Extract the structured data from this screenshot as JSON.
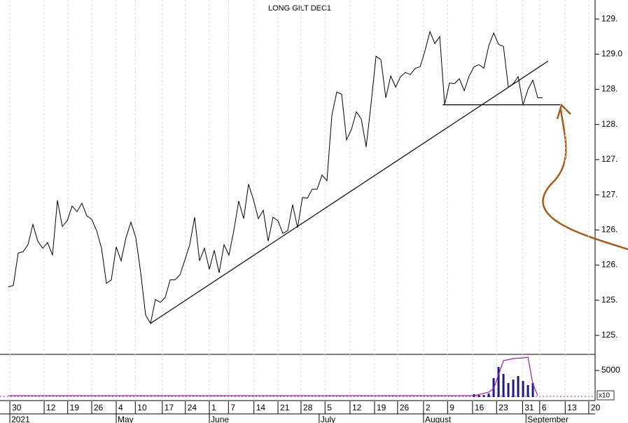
{
  "chart_data": [
    {
      "type": "line",
      "title": "LONG GILT DEC1",
      "series": [
        {
          "color": "#000000",
          "values": [
            125.69,
            125.71,
            126.17,
            126.19,
            126.29,
            126.58,
            126.34,
            126.24,
            126.32,
            126.14,
            126.92,
            126.55,
            126.63,
            126.84,
            126.76,
            126.88,
            126.7,
            126.65,
            126.49,
            126.24,
            125.74,
            125.79,
            126.26,
            126.06,
            126.39,
            126.61,
            126.39,
            125.89,
            125.29,
            125.17,
            125.51,
            125.47,
            125.54,
            125.79,
            125.79,
            125.86,
            126.07,
            126.29,
            126.68,
            126.06,
            126.24,
            125.94,
            126.21,
            125.89,
            126.29,
            126.14,
            126.49,
            126.91,
            126.66,
            127.15,
            126.93,
            126.66,
            126.78,
            126.34,
            126.68,
            126.63,
            126.45,
            126.49,
            126.86,
            126.53,
            126.96,
            126.95,
            127.08,
            127.08,
            127.28,
            127.2,
            128.13,
            128.46,
            128.43,
            127.78,
            127.93,
            128.18,
            128.08,
            127.68,
            128.3,
            128.97,
            128.92,
            128.38,
            128.69,
            128.53,
            128.68,
            128.74,
            128.71,
            128.8,
            128.82,
            129.05,
            129.32,
            129.15,
            129.25,
            128.28,
            128.59,
            128.58,
            128.65,
            128.48,
            128.69,
            128.82,
            128.85,
            128.8,
            129.12,
            129.3,
            129.14,
            129.11,
            128.53,
            128.58,
            128.68,
            128.28,
            128.5,
            128.63,
            128.38,
            128.38
          ]
        }
      ],
      "trendlines": [
        {
          "color": "#000000",
          "x": [
            29,
            110.1
          ],
          "values": [
            125.17,
            128.9
          ]
        },
        {
          "color": "#000000",
          "x": [
            88.6,
            112.6
          ],
          "values": [
            128.28,
            128.28
          ]
        }
      ],
      "xlim": [
        -1.71,
        119.7
      ],
      "ylim": [
        124.74,
        129.77
      ],
      "yticks": [
        {
          "value": 129.5,
          "label": "129."
        },
        {
          "value": 129.0,
          "label": "129.0"
        },
        {
          "value": 128.5,
          "label": "128."
        },
        {
          "value": 128.0,
          "label": "128."
        },
        {
          "value": 127.5,
          "label": "127."
        },
        {
          "value": 127.0,
          "label": "127."
        },
        {
          "value": 126.5,
          "label": "126."
        },
        {
          "value": 126.0,
          "label": "126."
        },
        {
          "value": 125.5,
          "label": "125."
        },
        {
          "value": 125.0,
          "label": "125."
        }
      ],
      "xticks": [
        {
          "value": 0.3,
          "label": "30"
        },
        {
          "value": 7.3,
          "label": "12"
        },
        {
          "value": 12.1,
          "label": "19"
        },
        {
          "value": 17,
          "label": "26"
        },
        {
          "value": 22,
          "label": "4"
        },
        {
          "value": 25.9,
          "label": "10"
        },
        {
          "value": 31.4,
          "label": "17"
        },
        {
          "value": 36.1,
          "label": "24"
        },
        {
          "value": 41,
          "label": "1"
        },
        {
          "value": 44.9,
          "label": "7"
        },
        {
          "value": 50.1,
          "label": "14"
        },
        {
          "value": 55,
          "label": "21"
        },
        {
          "value": 59.7,
          "label": "28"
        },
        {
          "value": 64.6,
          "label": "5"
        },
        {
          "value": 69.7,
          "label": "12"
        },
        {
          "value": 74.7,
          "label": "19"
        },
        {
          "value": 79.4,
          "label": "26"
        },
        {
          "value": 84.7,
          "label": "2"
        },
        {
          "value": 89.6,
          "label": "9"
        },
        {
          "value": 94.7,
          "label": "16"
        },
        {
          "value": 99.6,
          "label": "23"
        },
        {
          "value": 104.9,
          "label": "31"
        },
        {
          "value": 108.4,
          "label": "6"
        },
        {
          "value": 113.6,
          "label": "13"
        },
        {
          "value": 118.4,
          "label": "20"
        }
      ],
      "months": [
        {
          "value": 0.3,
          "label": "2021"
        },
        {
          "value": 22,
          "label": "May"
        },
        {
          "value": 41,
          "label": "June"
        },
        {
          "value": 63.4,
          "label": "July"
        },
        {
          "value": 84.7,
          "label": "August"
        },
        {
          "value": 105.6,
          "label": "September"
        }
      ],
      "grid": true
    },
    {
      "type": "bar",
      "unit": "x10",
      "x": [
        95,
        96,
        97,
        98,
        99,
        100,
        101,
        102,
        103,
        104,
        105,
        106,
        107
      ],
      "values": [
        530,
        390,
        390,
        660,
        3550,
        5660,
        4340,
        2630,
        3290,
        3950,
        3030,
        2240,
        2630
      ],
      "color": "#1a1a80",
      "series": [
        {
          "color": "#a020a0",
          "x": [
            0,
            95,
            98,
            99,
            100,
            101,
            103,
            105,
            106,
            107,
            108
          ],
          "values": [
            263,
            263,
            921,
            1579,
            4211,
            6843,
            7238,
            7370,
            7501,
            2500,
            263
          ]
        }
      ],
      "ylim": [
        0,
        8028
      ],
      "yticks": [
        5000
      ]
    }
  ]
}
